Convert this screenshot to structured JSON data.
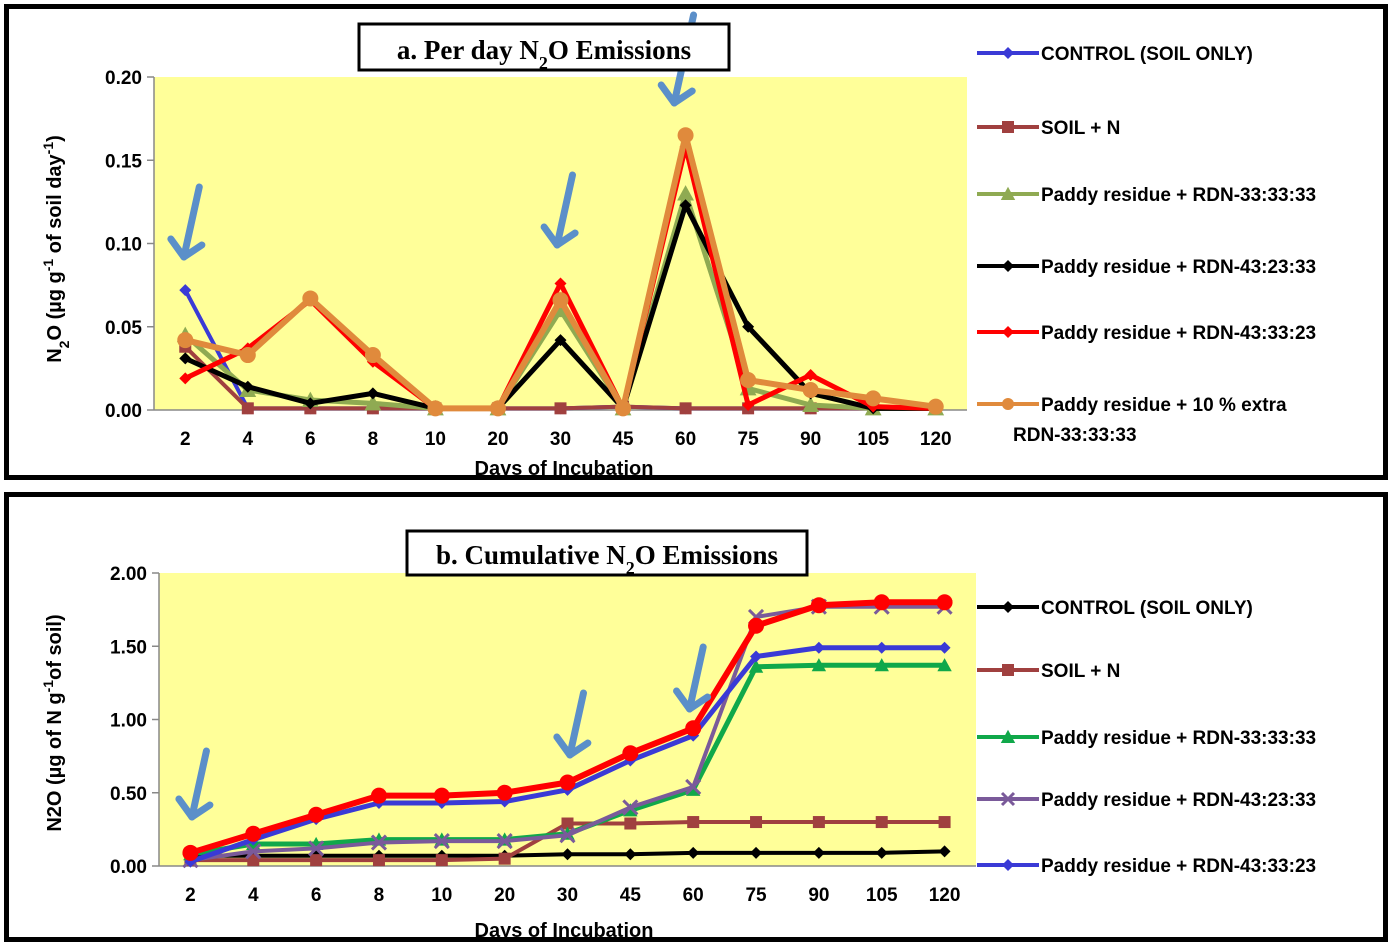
{
  "colors": {
    "plot_background": "#ffff99",
    "arrow": "#5b8fc9"
  },
  "chart_data": [
    {
      "type": "line",
      "title": "a. Per day N",
      "title_sub": "2",
      "title_rest": "O Emissions",
      "xlabel": "Days of Incubation",
      "ylabel": "N",
      "ylabel_sub": "2",
      "ylabel_rest": "O (µg g",
      "ylabel_sup1": "-1",
      "ylabel_rest2": " of soil day",
      "ylabel_sup2": "-1",
      "ylabel_end": ")",
      "categories": [
        "2",
        "4",
        "6",
        "8",
        "10",
        "20",
        "30",
        "45",
        "60",
        "75",
        "90",
        "105",
        "120"
      ],
      "ylim": [
        0,
        0.2
      ],
      "yticks": [
        "0.00",
        "0.05",
        "0.10",
        "0.15",
        "0.20"
      ],
      "ytick_values": [
        0,
        0.05,
        0.1,
        0.15,
        0.2
      ],
      "grid": false,
      "legend_position": "right",
      "arrows_at": [
        "2",
        "30",
        "60"
      ],
      "series": [
        {
          "name": "CONTROL  (SOIL ONLY)",
          "color": "#3a3ad6",
          "marker": "diamond",
          "values": [
            0.072,
            0.001,
            0.001,
            0.001,
            0.001,
            0.001,
            0.001,
            0.002,
            0.001,
            0.001,
            0.001,
            0.001,
            0.001
          ]
        },
        {
          "name": "SOIL + N",
          "color": "#a0403f",
          "marker": "square",
          "values": [
            0.038,
            0.001,
            0.001,
            0.001,
            0.001,
            0.001,
            0.001,
            0.002,
            0.001,
            0.001,
            0.001,
            0.001,
            0.001
          ]
        },
        {
          "name": "Paddy residue + RDN-33:33:33",
          "color": "#8faa52",
          "marker": "triangle",
          "values": [
            0.045,
            0.012,
            0.006,
            0.004,
            0.001,
            0.001,
            0.06,
            0.001,
            0.13,
            0.013,
            0.003,
            0.001,
            0.001
          ]
        },
        {
          "name": " Paddy residue + RDN-43:23:33",
          "color": "#000000",
          "marker": "diamond",
          "values": [
            0.031,
            0.014,
            0.004,
            0.01,
            0.001,
            0.001,
            0.042,
            0.001,
            0.123,
            0.05,
            0.01,
            0.001,
            0.001
          ]
        },
        {
          "name": " Paddy residue + RDN-43:33:23",
          "color": "#ff0000",
          "marker": "diamond",
          "values": [
            0.019,
            0.037,
            0.066,
            0.029,
            0.001,
            0.001,
            0.076,
            0.001,
            0.158,
            0.003,
            0.021,
            0.002,
            0.001
          ]
        },
        {
          "name": " Paddy residue + 10 % extra",
          "name2": "RDN-33:33:33",
          "color": "#e08a3c",
          "marker": "circle",
          "values": [
            0.042,
            0.033,
            0.067,
            0.033,
            0.001,
            0.001,
            0.066,
            0.001,
            0.165,
            0.018,
            0.012,
            0.007,
            0.002
          ]
        }
      ]
    },
    {
      "type": "line",
      "title": "b. Cumulative N",
      "title_sub": "2",
      "title_rest": "O Emissions",
      "xlabel": "Days of Incubation",
      "ylabel": "N2O (µg of N g",
      "ylabel_sup1": "-1",
      "ylabel_rest": "of soil)",
      "categories": [
        "2",
        "4",
        "6",
        "8",
        "10",
        "20",
        "30",
        "45",
        "60",
        "75",
        "90",
        "105",
        "120"
      ],
      "ylim": [
        0,
        2
      ],
      "yticks": [
        "0.00",
        "0.50",
        "1.00",
        "1.50",
        "2.00"
      ],
      "ytick_values": [
        0,
        0.5,
        1,
        1.5,
        2
      ],
      "grid": false,
      "legend_position": "right",
      "arrows_at": [
        "2",
        "30",
        "60"
      ],
      "series": [
        {
          "name": "CONTROL  (SOIL ONLY)",
          "color": "#000000",
          "marker": "diamond",
          "values": [
            0.07,
            0.07,
            0.07,
            0.07,
            0.07,
            0.07,
            0.08,
            0.08,
            0.09,
            0.09,
            0.09,
            0.09,
            0.1
          ]
        },
        {
          "name": "SOIL + N",
          "color": "#a0403f",
          "marker": "square",
          "values": [
            0.04,
            0.04,
            0.04,
            0.04,
            0.04,
            0.05,
            0.29,
            0.29,
            0.3,
            0.3,
            0.3,
            0.3,
            0.3
          ]
        },
        {
          "name": "Paddy residue + RDN-33:33:33",
          "color": "#10a84a",
          "marker": "triangle",
          "values": [
            0.08,
            0.15,
            0.15,
            0.18,
            0.18,
            0.18,
            0.22,
            0.38,
            0.52,
            1.36,
            1.37,
            1.37,
            1.37
          ]
        },
        {
          "name": " Paddy residue + RDN-43:23:33",
          "color": "#7a5a9a",
          "marker": "x",
          "values": [
            0.04,
            0.1,
            0.12,
            0.16,
            0.17,
            0.17,
            0.21,
            0.4,
            0.54,
            1.7,
            1.77,
            1.77,
            1.77
          ]
        },
        {
          "name": " Paddy residue + RDN-43:33:23",
          "color": "#3a3ad6",
          "marker": "diamond",
          "values": [
            0.03,
            0.18,
            0.32,
            0.43,
            0.43,
            0.44,
            0.52,
            0.72,
            0.89,
            1.43,
            1.49,
            1.49,
            1.49
          ]
        },
        {
          "name": "",
          "color": "#ff0000",
          "marker": "circle",
          "values": [
            0.09,
            0.22,
            0.35,
            0.48,
            0.48,
            0.5,
            0.57,
            0.77,
            0.94,
            1.64,
            1.78,
            1.8,
            1.8
          ]
        }
      ]
    }
  ]
}
